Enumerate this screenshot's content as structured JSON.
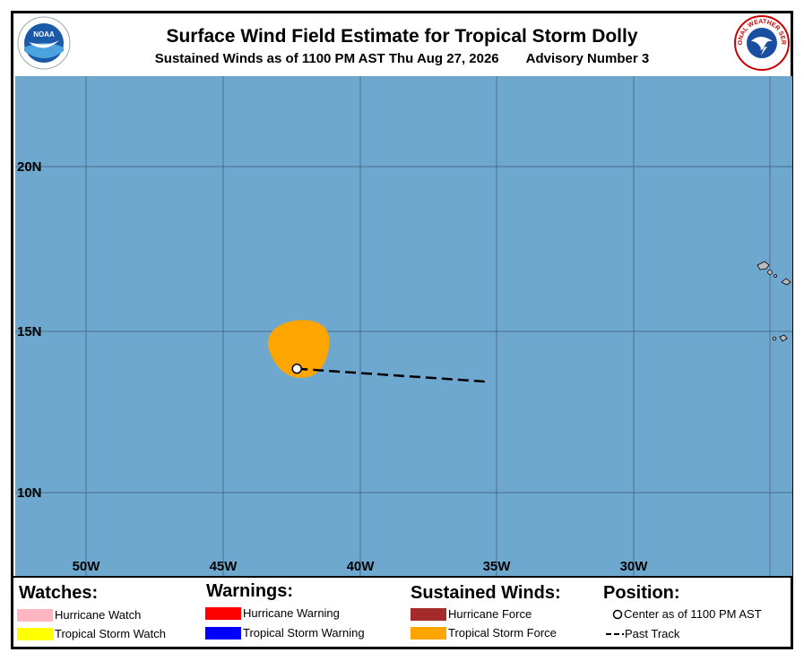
{
  "header": {
    "title": "Surface Wind Field Estimate for Tropical Storm Dolly",
    "subtitle_left": "Sustained Winds as of 1100 PM AST Thu Aug 27, 2026",
    "subtitle_right": "Advisory Number 3"
  },
  "logos": {
    "noaa_text": "NOAA",
    "nws_text": "NATIONAL WEATHER SERVICE"
  },
  "map": {
    "lat_labels": [
      "20N",
      "15N",
      "10N"
    ],
    "lon_labels": [
      "50W",
      "45W",
      "40W",
      "35W",
      "30W"
    ],
    "ocean_color": "#6fa8cf",
    "storm_color": "#ffa500",
    "center": {
      "lon": -42.3,
      "lat": 13.8
    },
    "past_track": [
      {
        "lon": -42.3,
        "lat": 13.8
      },
      {
        "lon": -35.3,
        "lat": 13.4
      }
    ]
  },
  "legend": {
    "watches": {
      "heading": "Watches:",
      "items": [
        {
          "label": "Hurricane Watch",
          "color": "#ffb6c1"
        },
        {
          "label": "Tropical Storm Watch",
          "color": "#ffff00"
        }
      ]
    },
    "warnings": {
      "heading": "Warnings:",
      "items": [
        {
          "label": "Hurricane Warning",
          "color": "#ff0000"
        },
        {
          "label": "Tropical Storm Warning",
          "color": "#0000ff"
        }
      ]
    },
    "winds": {
      "heading": "Sustained Winds:",
      "items": [
        {
          "label": "Hurricane Force",
          "color": "#a52a2a"
        },
        {
          "label": "Tropical Storm Force",
          "color": "#ffa500"
        }
      ]
    },
    "position": {
      "heading": "Position:",
      "center_label": "Center as of 1100 PM AST",
      "track_label": "Past Track"
    }
  }
}
